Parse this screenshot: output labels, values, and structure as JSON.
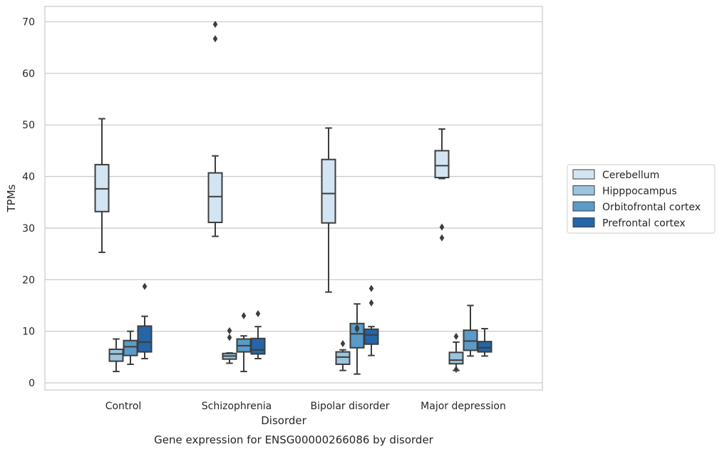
{
  "chart_data": {
    "type": "box",
    "caption": "Gene expression for ENSG00000266086 by disorder",
    "xlabel": "Disorder",
    "ylabel": "TPMs",
    "ylim": [
      -1.5,
      73
    ],
    "yticks": [
      0,
      10,
      20,
      30,
      40,
      50,
      60,
      70
    ],
    "grid": "horizontal",
    "legend_position": "right",
    "categories": [
      "Control",
      "Schizophrenia",
      "Bipolar disorder",
      "Major depression"
    ],
    "series": [
      {
        "name": "Cerebellum",
        "color": "#d3e4f3",
        "boxes": [
          {
            "whislo": 25.3,
            "q1": 33.2,
            "med": 37.6,
            "q3": 42.3,
            "whishi": 51.2,
            "fliers": []
          },
          {
            "whislo": 28.4,
            "q1": 31.1,
            "med": 36.1,
            "q3": 40.7,
            "whishi": 44.0,
            "fliers": [
              66.7,
              69.5
            ]
          },
          {
            "whislo": 17.6,
            "q1": 31.0,
            "med": 36.7,
            "q3": 43.3,
            "whishi": 49.4,
            "fliers": []
          },
          {
            "whislo": 39.6,
            "q1": 39.8,
            "med": 42.1,
            "q3": 45.0,
            "whishi": 49.2,
            "fliers": [
              30.2,
              28.1
            ]
          }
        ]
      },
      {
        "name": "Hipppocampus",
        "color": "#9ac5dd",
        "boxes": [
          {
            "whislo": 2.2,
            "q1": 4.2,
            "med": 5.6,
            "q3": 6.5,
            "whishi": 8.5,
            "fliers": []
          },
          {
            "whislo": 3.8,
            "q1": 4.6,
            "med": 5.2,
            "q3": 5.7,
            "whishi": 5.8,
            "fliers": [
              10.1,
              8.8
            ]
          },
          {
            "whislo": 2.4,
            "q1": 3.6,
            "med": 5.0,
            "q3": 6.0,
            "whishi": 6.4,
            "fliers": [
              7.6
            ]
          },
          {
            "whislo": 2.4,
            "q1": 3.7,
            "med": 4.4,
            "q3": 5.9,
            "whishi": 7.9,
            "fliers": [
              2.6,
              9.0
            ]
          }
        ]
      },
      {
        "name": "Orbitofrontal cortex",
        "color": "#5a9bc8",
        "boxes": [
          {
            "whislo": 3.6,
            "q1": 5.3,
            "med": 7.0,
            "q3": 8.2,
            "whishi": 10.0,
            "fliers": []
          },
          {
            "whislo": 2.2,
            "q1": 6.0,
            "med": 7.2,
            "q3": 8.5,
            "whishi": 9.1,
            "fliers": [
              13.0
            ]
          },
          {
            "whislo": 1.7,
            "q1": 6.8,
            "med": 9.5,
            "q3": 11.5,
            "whishi": 15.3,
            "fliers": [
              10.4,
              10.7
            ]
          },
          {
            "whislo": 5.2,
            "q1": 6.3,
            "med": 8.1,
            "q3": 10.2,
            "whishi": 15.0,
            "fliers": []
          }
        ]
      },
      {
        "name": "Prefrontal cortex",
        "color": "#2466a8",
        "boxes": [
          {
            "whislo": 4.7,
            "q1": 6.0,
            "med": 7.9,
            "q3": 11.0,
            "whishi": 12.9,
            "fliers": [
              18.7
            ]
          },
          {
            "whislo": 4.7,
            "q1": 5.6,
            "med": 6.4,
            "q3": 8.6,
            "whishi": 10.9,
            "fliers": [
              13.4
            ]
          },
          {
            "whislo": 5.3,
            "q1": 7.5,
            "med": 9.3,
            "q3": 10.4,
            "whishi": 10.9,
            "fliers": [
              15.5,
              18.3
            ]
          },
          {
            "whislo": 5.2,
            "q1": 6.0,
            "med": 6.8,
            "q3": 8.0,
            "whishi": 10.5,
            "fliers": []
          }
        ]
      }
    ]
  }
}
